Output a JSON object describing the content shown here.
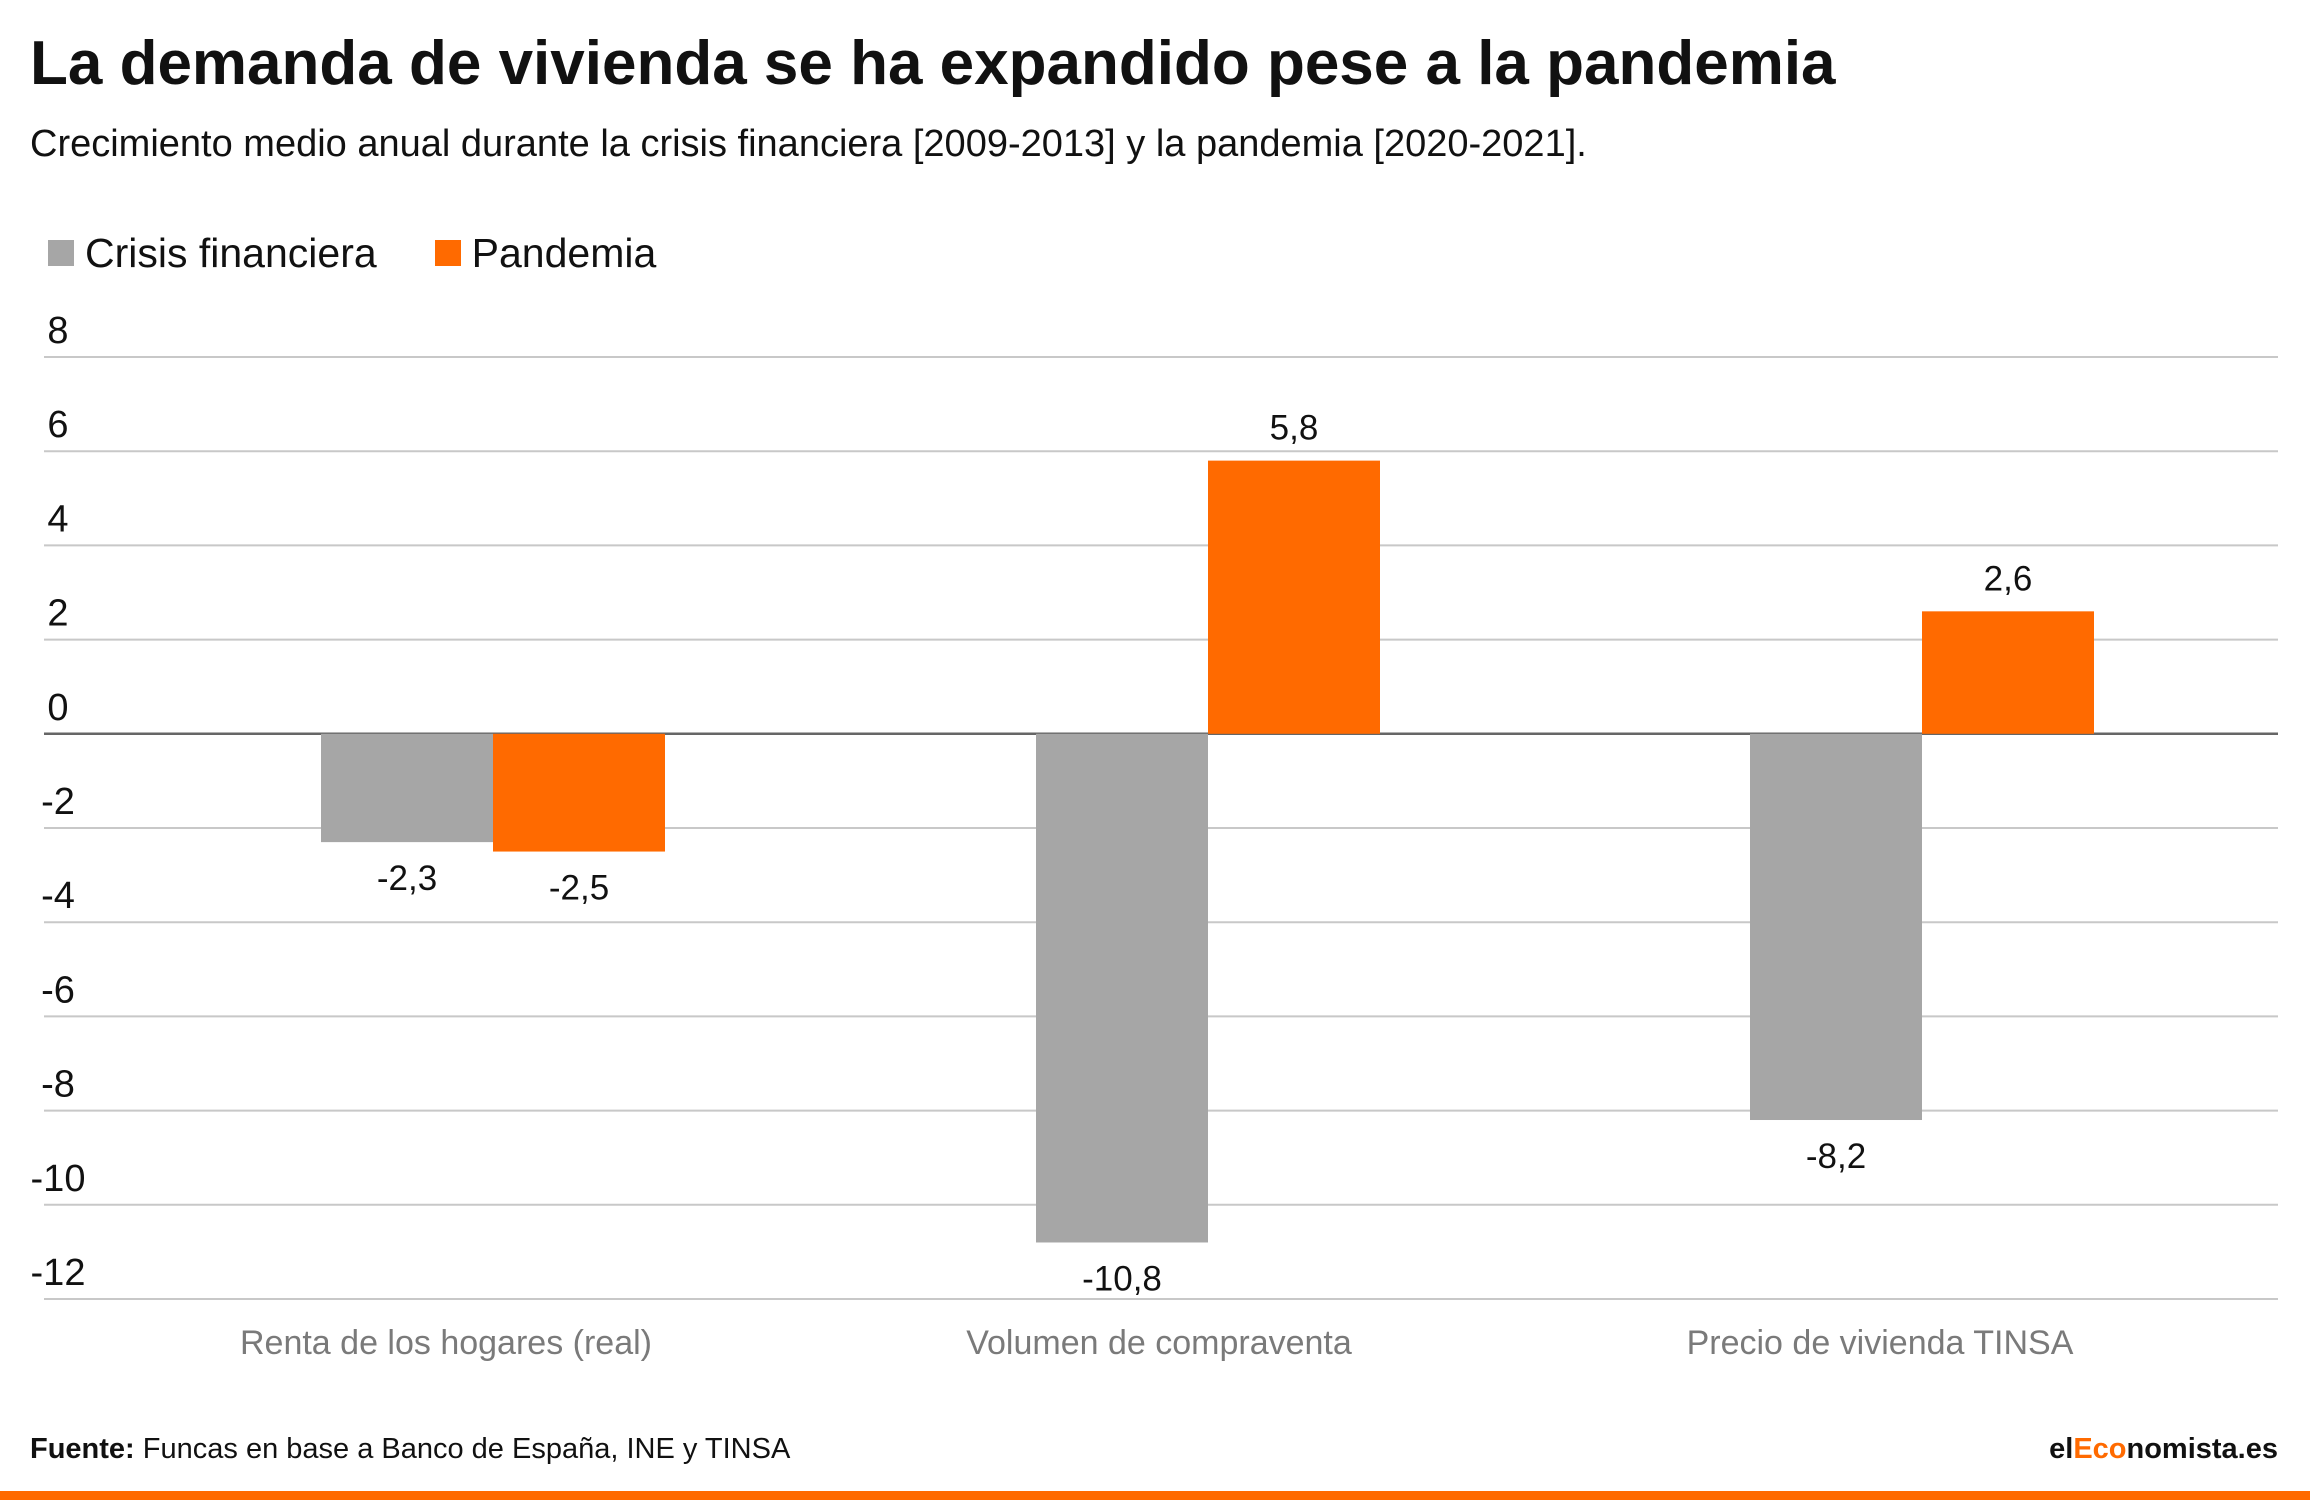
{
  "header": {
    "title": "La demanda de vivienda se ha expandido pese a la pandemia",
    "subtitle": "Crecimiento medio anual durante la crisis financiera [2009-2013] y la pandemia [2020-2021]."
  },
  "legend": {
    "items": [
      {
        "label": "Crisis financiera",
        "color": "#a6a6a6"
      },
      {
        "label": "Pandemia",
        "color": "#ff6a00"
      }
    ],
    "placement": "top-left"
  },
  "chart_data": {
    "type": "bar",
    "title": "",
    "xlabel": "",
    "ylabel": "",
    "categories": [
      "Renta de los hogares (real)",
      "Volumen de compraventa",
      "Precio de vivienda TINSA"
    ],
    "series": [
      {
        "name": "Crisis financiera",
        "color": "#a6a6a6",
        "values": [
          -2.3,
          -10.8,
          -8.2
        ],
        "labels": [
          "-2,3",
          "-10,8",
          "-8,2"
        ]
      },
      {
        "name": "Pandemia",
        "color": "#ff6a00",
        "values": [
          -2.5,
          5.8,
          2.6
        ],
        "labels": [
          "-2,5",
          "5,8",
          "2,6"
        ]
      }
    ],
    "ylim": [
      -12,
      8
    ],
    "yticks": [
      8,
      6,
      4,
      2,
      0,
      -2,
      -4,
      -6,
      -8,
      -10,
      -12
    ],
    "ytick_labels": [
      "8",
      "6",
      "4",
      "2",
      "0",
      "-2",
      "-4",
      "-6",
      "-8",
      "-10",
      "-12"
    ],
    "grid": true,
    "zero_line": true,
    "gridline_color": "#c8c8c8",
    "zero_line_color": "#666666"
  },
  "footer": {
    "source_label": "Fuente:",
    "source_text": "Funcas en base a Banco de España, INE y TINSA",
    "brand_prefix": "el",
    "brand_accent": "Eco",
    "brand_suffix": "nomista.es",
    "accent_color": "#ff6a00"
  }
}
